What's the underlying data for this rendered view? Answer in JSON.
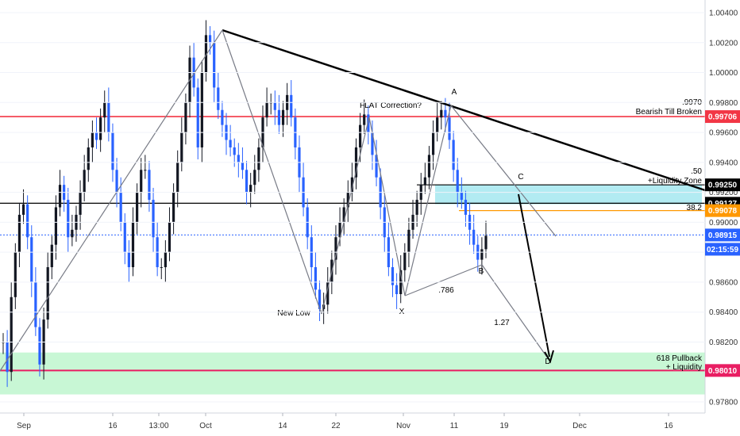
{
  "chart_data": {
    "type": "line",
    "title": "",
    "xlabel": "",
    "ylabel": "",
    "ylim": [
      0.977,
      1.0046
    ],
    "grid": true,
    "x_ticks": [
      "Sep",
      "16",
      "13:00",
      "Oct",
      "14",
      "22",
      "Nov",
      "11",
      "19",
      "Dec",
      "16"
    ],
    "y_ticks": [
      "1.00400",
      "1.00200",
      "1.00000",
      "0.99800",
      "0.99600",
      "0.99400",
      "0.99200",
      "0.99000",
      "0.98800",
      "0.98600",
      "0.98400",
      "0.98200",
      "0.97800"
    ],
    "series": [
      {
        "values": [
          0.982,
          0.98,
          0.985,
          0.988,
          0.9905,
          0.9912,
          0.989,
          0.986,
          0.983,
          0.9805,
          0.9835,
          0.987,
          0.9885,
          0.991,
          0.9925,
          0.9915,
          0.989,
          0.9895,
          0.9905,
          0.992,
          0.9935,
          0.995,
          0.996,
          0.9955,
          0.997,
          0.998,
          0.996,
          0.9935,
          0.992,
          0.99,
          0.988,
          0.987,
          0.99,
          0.992,
          0.9935,
          0.9935,
          0.9915,
          0.989,
          0.987,
          0.987,
          0.988,
          0.99,
          0.992,
          0.994,
          0.996,
          0.998,
          1.001,
          0.999,
          0.995,
          1.0,
          1.0025,
          1.002,
          0.999,
          0.9975,
          0.9965,
          0.9955,
          0.995,
          0.9945,
          0.994,
          0.9935,
          0.992,
          0.9925,
          0.9935,
          0.995,
          0.997,
          0.998,
          0.998,
          0.9975,
          0.9965,
          0.9975,
          0.9985,
          0.997,
          0.995,
          0.993,
          0.991,
          0.989,
          0.987,
          0.9855,
          0.9842,
          0.9845,
          0.986,
          0.9875,
          0.989,
          0.99,
          0.991,
          0.992,
          0.993,
          0.995,
          0.9965,
          0.9972,
          0.996,
          0.9945,
          0.993,
          0.991,
          0.989,
          0.987,
          0.9858,
          0.9852,
          0.9868,
          0.988,
          0.9895,
          0.9905,
          0.9915,
          0.9925,
          0.993,
          0.9945,
          0.996,
          0.997,
          0.9975,
          0.997,
          0.9955,
          0.9935,
          0.992,
          0.9915,
          0.9905,
          0.9895,
          0.9885,
          0.9875,
          0.9882,
          0.9891
        ]
      }
    ],
    "horizontal_levels": [
      {
        "value": 0.99706,
        "color": "#f23645",
        "label": "0.99706"
      },
      {
        "value": 0.9925,
        "color": "#000000",
        "label": "0.99250"
      },
      {
        "value": 0.99127,
        "color": "#000000",
        "label": "0.99127"
      },
      {
        "value": 0.99078,
        "color": "#ff9800",
        "label": "0.99078"
      },
      {
        "value": 0.98915,
        "color": "#2962ff",
        "label": "0.98915"
      },
      {
        "value": 0.9801,
        "color": "#e91e63",
        "label": "0.98010"
      }
    ],
    "zones": [
      {
        "name": "liquidity-zone",
        "from": 0.9912,
        "to": 0.9925,
        "color": "#b2ebf2"
      },
      {
        "name": "pullback-zone",
        "from": 0.9785,
        "to": 0.9813,
        "color": "#c8f7d5"
      }
    ],
    "annotations": [
      {
        "id": "bearish",
        "text": "Bearish Till Broken"
      },
      {
        "id": "lvl9970",
        "text": ".9970"
      },
      {
        "id": "flat",
        "text": "FLAT Correction?"
      },
      {
        "id": "A",
        "text": "A"
      },
      {
        "id": "B",
        "text": "B"
      },
      {
        "id": "C",
        "text": "C"
      },
      {
        "id": "D",
        "text": "D"
      },
      {
        "id": "X",
        "text": "X"
      },
      {
        "id": "newlow",
        "text": "New Low"
      },
      {
        "id": "r786",
        "text": ".786"
      },
      {
        "id": "r127",
        "text": "1.27"
      },
      {
        "id": "r50",
        "text": ".50"
      },
      {
        "id": "liq",
        "text": "+Liquidity Zone"
      },
      {
        "id": "r382",
        "text": "38.2"
      },
      {
        "id": "pull1",
        "text": "618 Pullback"
      },
      {
        "id": "pull2",
        "text": "+ Liquidity"
      }
    ],
    "countdown": "02:15:59",
    "colors": {
      "up": "#131722",
      "down": "#2962ff",
      "trendline": "#000000",
      "pattern": "#787b86"
    }
  }
}
